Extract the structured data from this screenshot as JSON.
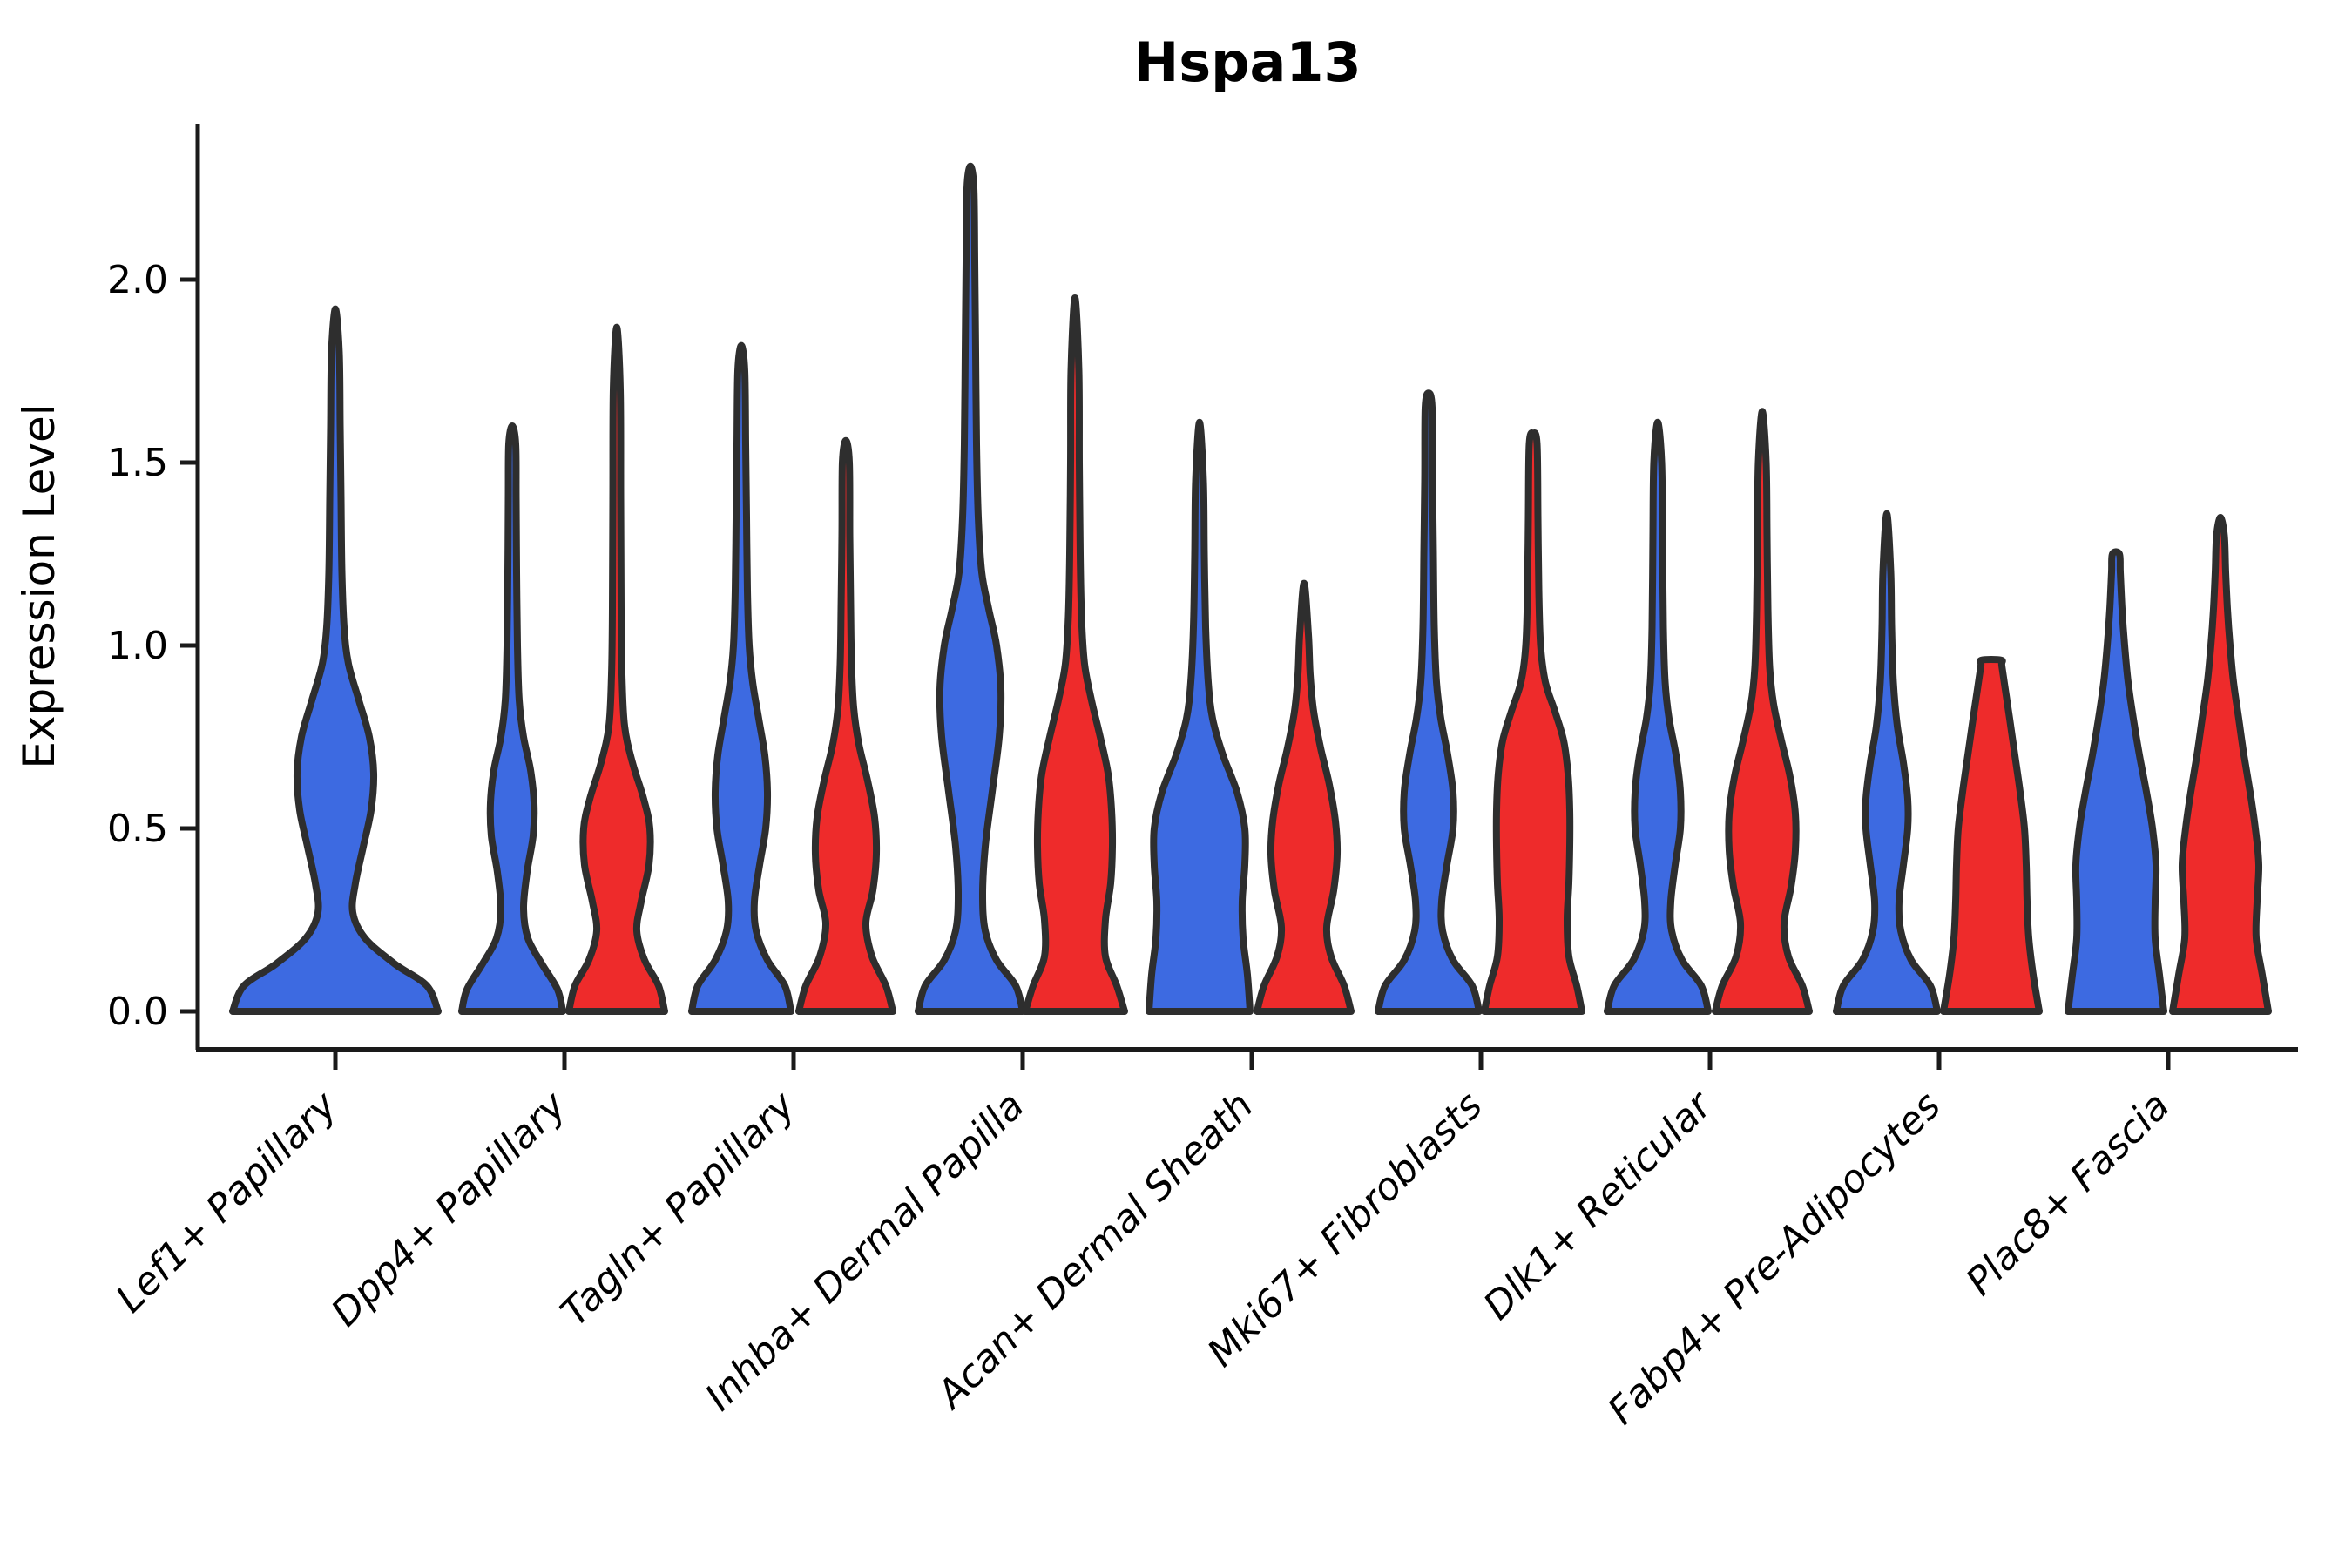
{
  "chart_data": {
    "type": "violin",
    "title": "Hspa13",
    "xlabel": "",
    "ylabel": "Expression Level",
    "ytick_labels": [
      "0.0",
      "0.5",
      "1.0",
      "1.5",
      "2.0"
    ],
    "ytick_values": [
      0.0,
      0.5,
      1.0,
      1.5,
      2.0
    ],
    "ylim": [
      -0.1,
      2.43
    ],
    "grid": false,
    "legend_position": "none",
    "categories": [
      "Lef1+ Papillary",
      "Dpp4+ Papillary",
      "Tagln+ Papillary",
      "Inhba+ Dermal Papilla",
      "Acan+ Dermal Sheath",
      "Mki67+ Fibroblasts",
      "Dlk1+ Reticular",
      "Fabp4+ Pre-Adipocytes",
      "Plac8+ Fascia"
    ],
    "series": [
      {
        "name": "blue",
        "color": "#3D6AE1",
        "max_expression": [
          1.92,
          1.6,
          1.82,
          2.31,
          1.61,
          1.69,
          1.61,
          1.36,
          1.25
        ]
      },
      {
        "name": "red",
        "color": "#EE2B2B",
        "max_expression": [
          null,
          1.87,
          1.56,
          1.95,
          1.17,
          1.58,
          1.64,
          0.96,
          1.35
        ]
      }
    ],
    "violins": [
      {
        "category": "Lef1+ Papillary",
        "split": "blue",
        "single": true,
        "max": 1.92,
        "profile": [
          [
            0,
            118
          ],
          [
            0.07,
            105
          ],
          [
            0.13,
            68
          ],
          [
            0.2,
            34
          ],
          [
            0.27,
            20
          ],
          [
            0.35,
            23
          ],
          [
            0.45,
            32
          ],
          [
            0.55,
            41
          ],
          [
            0.65,
            44
          ],
          [
            0.75,
            39
          ],
          [
            0.85,
            27
          ],
          [
            0.95,
            15
          ],
          [
            1.05,
            10
          ],
          [
            1.2,
            7.5
          ],
          [
            1.4,
            6.5
          ],
          [
            1.6,
            5.5
          ],
          [
            1.8,
            4.5
          ],
          [
            1.92,
            0
          ]
        ]
      },
      {
        "category": "Dpp4+ Papillary",
        "split": "blue",
        "max": 1.6,
        "profile": [
          [
            0,
            58
          ],
          [
            0.06,
            52
          ],
          [
            0.13,
            34
          ],
          [
            0.2,
            18
          ],
          [
            0.28,
            13
          ],
          [
            0.38,
            17
          ],
          [
            0.48,
            24
          ],
          [
            0.57,
            25
          ],
          [
            0.66,
            21
          ],
          [
            0.75,
            13
          ],
          [
            0.85,
            8
          ],
          [
            1.0,
            6
          ],
          [
            1.2,
            5
          ],
          [
            1.4,
            4.5
          ],
          [
            1.55,
            4
          ],
          [
            1.6,
            0
          ]
        ]
      },
      {
        "category": "Dpp4+ Papillary",
        "split": "red",
        "max": 1.87,
        "profile": [
          [
            0,
            55
          ],
          [
            0.07,
            48
          ],
          [
            0.14,
            32
          ],
          [
            0.22,
            23
          ],
          [
            0.3,
            28
          ],
          [
            0.4,
            37
          ],
          [
            0.5,
            38
          ],
          [
            0.58,
            31
          ],
          [
            0.68,
            18
          ],
          [
            0.78,
            9
          ],
          [
            0.92,
            6
          ],
          [
            1.1,
            5
          ],
          [
            1.4,
            4.5
          ],
          [
            1.7,
            4
          ],
          [
            1.87,
            0
          ]
        ]
      },
      {
        "category": "Tagln+ Papillary",
        "split": "blue",
        "max": 1.82,
        "profile": [
          [
            0,
            57
          ],
          [
            0.07,
            50
          ],
          [
            0.14,
            30
          ],
          [
            0.22,
            17
          ],
          [
            0.3,
            15
          ],
          [
            0.4,
            21
          ],
          [
            0.5,
            28
          ],
          [
            0.6,
            30
          ],
          [
            0.7,
            27
          ],
          [
            0.8,
            20
          ],
          [
            0.9,
            13
          ],
          [
            1.0,
            9
          ],
          [
            1.15,
            7
          ],
          [
            1.35,
            6
          ],
          [
            1.55,
            5
          ],
          [
            1.75,
            4
          ],
          [
            1.82,
            0
          ]
        ]
      },
      {
        "category": "Tagln+ Papillary",
        "split": "red",
        "max": 1.56,
        "profile": [
          [
            0,
            54
          ],
          [
            0.07,
            46
          ],
          [
            0.15,
            30
          ],
          [
            0.24,
            23
          ],
          [
            0.33,
            31
          ],
          [
            0.43,
            35
          ],
          [
            0.53,
            33
          ],
          [
            0.63,
            25
          ],
          [
            0.73,
            15
          ],
          [
            0.83,
            9
          ],
          [
            0.95,
            6.5
          ],
          [
            1.1,
            5.5
          ],
          [
            1.3,
            4.5
          ],
          [
            1.5,
            4
          ],
          [
            1.56,
            0
          ]
        ]
      },
      {
        "category": "Inhba+ Dermal Papilla",
        "split": "blue",
        "max": 2.31,
        "profile": [
          [
            0,
            60
          ],
          [
            0.07,
            52
          ],
          [
            0.14,
            30
          ],
          [
            0.22,
            17
          ],
          [
            0.32,
            14
          ],
          [
            0.45,
            17
          ],
          [
            0.6,
            25
          ],
          [
            0.75,
            33
          ],
          [
            0.88,
            35
          ],
          [
            1.0,
            30
          ],
          [
            1.1,
            21
          ],
          [
            1.2,
            13
          ],
          [
            1.35,
            9
          ],
          [
            1.55,
            7
          ],
          [
            1.8,
            6
          ],
          [
            2.05,
            5
          ],
          [
            2.25,
            4
          ],
          [
            2.31,
            0
          ]
        ]
      },
      {
        "category": "Inhba+ Dermal Papilla",
        "split": "red",
        "max": 1.95,
        "profile": [
          [
            0,
            57
          ],
          [
            0.07,
            48
          ],
          [
            0.15,
            35
          ],
          [
            0.25,
            35
          ],
          [
            0.35,
            41
          ],
          [
            0.45,
            43
          ],
          [
            0.55,
            42
          ],
          [
            0.65,
            38
          ],
          [
            0.75,
            29
          ],
          [
            0.85,
            19
          ],
          [
            0.95,
            11
          ],
          [
            1.08,
            7.5
          ],
          [
            1.25,
            6
          ],
          [
            1.5,
            5
          ],
          [
            1.75,
            4.5
          ],
          [
            1.95,
            0
          ]
        ]
      },
      {
        "category": "Acan+ Dermal Sheath",
        "split": "blue",
        "max": 1.61,
        "profile": [
          [
            0,
            58
          ],
          [
            0.1,
            55
          ],
          [
            0.2,
            50
          ],
          [
            0.3,
            49
          ],
          [
            0.4,
            52
          ],
          [
            0.5,
            52
          ],
          [
            0.6,
            43
          ],
          [
            0.7,
            27
          ],
          [
            0.8,
            15
          ],
          [
            0.9,
            10
          ],
          [
            1.05,
            7
          ],
          [
            1.25,
            5.5
          ],
          [
            1.45,
            4.5
          ],
          [
            1.61,
            0
          ]
        ]
      },
      {
        "category": "Acan+ Dermal Sheath",
        "split": "red",
        "max": 1.17,
        "profile": [
          [
            0,
            54
          ],
          [
            0.07,
            46
          ],
          [
            0.15,
            31
          ],
          [
            0.23,
            26
          ],
          [
            0.33,
            34
          ],
          [
            0.43,
            38
          ],
          [
            0.52,
            36
          ],
          [
            0.62,
            29
          ],
          [
            0.72,
            19
          ],
          [
            0.82,
            11
          ],
          [
            0.92,
            7
          ],
          [
            1.03,
            5
          ],
          [
            1.17,
            0
          ]
        ]
      },
      {
        "category": "Mki67+ Fibroblasts",
        "split": "blue",
        "max": 1.69,
        "profile": [
          [
            0,
            58
          ],
          [
            0.07,
            50
          ],
          [
            0.14,
            28
          ],
          [
            0.22,
            16
          ],
          [
            0.3,
            15
          ],
          [
            0.4,
            21
          ],
          [
            0.5,
            28
          ],
          [
            0.6,
            28
          ],
          [
            0.7,
            22
          ],
          [
            0.8,
            14
          ],
          [
            0.9,
            9
          ],
          [
            1.05,
            6.5
          ],
          [
            1.25,
            5.5
          ],
          [
            1.45,
            4.5
          ],
          [
            1.65,
            4
          ],
          [
            1.69,
            0
          ]
        ]
      },
      {
        "category": "Mki67+ Fibroblasts",
        "split": "red",
        "max": 1.58,
        "profile": [
          [
            0,
            56
          ],
          [
            0.07,
            50
          ],
          [
            0.15,
            41
          ],
          [
            0.25,
            39
          ],
          [
            0.35,
            41
          ],
          [
            0.45,
            42
          ],
          [
            0.55,
            42
          ],
          [
            0.65,
            40
          ],
          [
            0.74,
            35
          ],
          [
            0.82,
            25
          ],
          [
            0.9,
            14
          ],
          [
            1.0,
            8.5
          ],
          [
            1.15,
            6.5
          ],
          [
            1.35,
            5.5
          ],
          [
            1.55,
            4.5
          ],
          [
            1.58,
            0
          ]
        ]
      },
      {
        "category": "Dlk1+ Reticular",
        "split": "blue",
        "max": 1.61,
        "profile": [
          [
            0,
            58
          ],
          [
            0.07,
            50
          ],
          [
            0.14,
            28
          ],
          [
            0.22,
            16
          ],
          [
            0.3,
            15
          ],
          [
            0.4,
            20
          ],
          [
            0.5,
            26
          ],
          [
            0.6,
            26
          ],
          [
            0.7,
            21
          ],
          [
            0.8,
            13
          ],
          [
            0.9,
            8.5
          ],
          [
            1.05,
            6.5
          ],
          [
            1.3,
            5.5
          ],
          [
            1.5,
            4.5
          ],
          [
            1.61,
            0
          ]
        ]
      },
      {
        "category": "Dlk1+ Reticular",
        "split": "red",
        "max": 1.64,
        "profile": [
          [
            0,
            54
          ],
          [
            0.07,
            46
          ],
          [
            0.15,
            30
          ],
          [
            0.24,
            25
          ],
          [
            0.34,
            33
          ],
          [
            0.44,
            38
          ],
          [
            0.54,
            38
          ],
          [
            0.64,
            32
          ],
          [
            0.74,
            22
          ],
          [
            0.84,
            13
          ],
          [
            0.94,
            8.5
          ],
          [
            1.1,
            6.5
          ],
          [
            1.3,
            5.5
          ],
          [
            1.5,
            4.5
          ],
          [
            1.64,
            0
          ]
        ]
      },
      {
        "category": "Fabp4+ Pre-Adipocytes",
        "split": "blue",
        "max": 1.36,
        "profile": [
          [
            0,
            58
          ],
          [
            0.07,
            50
          ],
          [
            0.14,
            28
          ],
          [
            0.22,
            16
          ],
          [
            0.3,
            14
          ],
          [
            0.4,
            19
          ],
          [
            0.5,
            24
          ],
          [
            0.58,
            24
          ],
          [
            0.68,
            19
          ],
          [
            0.78,
            12
          ],
          [
            0.9,
            7.5
          ],
          [
            1.05,
            5.5
          ],
          [
            1.2,
            4.5
          ],
          [
            1.36,
            0
          ]
        ]
      },
      {
        "category": "Fabp4+ Pre-Adipocytes",
        "split": "red",
        "max": 0.96,
        "flat_top": true,
        "profile": [
          [
            0,
            55
          ],
          [
            0.1,
            48
          ],
          [
            0.2,
            43
          ],
          [
            0.3,
            41
          ],
          [
            0.4,
            40
          ],
          [
            0.5,
            38
          ],
          [
            0.6,
            33
          ],
          [
            0.7,
            27
          ],
          [
            0.8,
            21
          ],
          [
            0.88,
            16
          ],
          [
            0.945,
            12
          ],
          [
            0.96,
            11
          ]
        ]
      },
      {
        "category": "Plac8+ Fascia",
        "split": "blue",
        "max": 1.25,
        "flat_top": true,
        "profile": [
          [
            0,
            55
          ],
          [
            0.1,
            50
          ],
          [
            0.2,
            45
          ],
          [
            0.3,
            45
          ],
          [
            0.4,
            46
          ],
          [
            0.5,
            42
          ],
          [
            0.6,
            35
          ],
          [
            0.7,
            27
          ],
          [
            0.8,
            20
          ],
          [
            0.9,
            14
          ],
          [
            1.0,
            10
          ],
          [
            1.1,
            7
          ],
          [
            1.2,
            5
          ],
          [
            1.25,
            4
          ]
        ]
      },
      {
        "category": "Plac8+ Fascia",
        "split": "red",
        "max": 1.35,
        "profile": [
          [
            0,
            55
          ],
          [
            0.1,
            48
          ],
          [
            0.2,
            41
          ],
          [
            0.3,
            42
          ],
          [
            0.4,
            44
          ],
          [
            0.5,
            40
          ],
          [
            0.6,
            34
          ],
          [
            0.7,
            27
          ],
          [
            0.8,
            21
          ],
          [
            0.9,
            15
          ],
          [
            1.0,
            11
          ],
          [
            1.1,
            8
          ],
          [
            1.2,
            6
          ],
          [
            1.3,
            4.5
          ],
          [
            1.35,
            0
          ]
        ]
      }
    ],
    "colors": {
      "blue": "#3D6AE1",
      "red": "#EE2B2B",
      "outline": "#2E2E2E",
      "axis": "#1A1A1A",
      "background": "#FFFFFF"
    }
  }
}
